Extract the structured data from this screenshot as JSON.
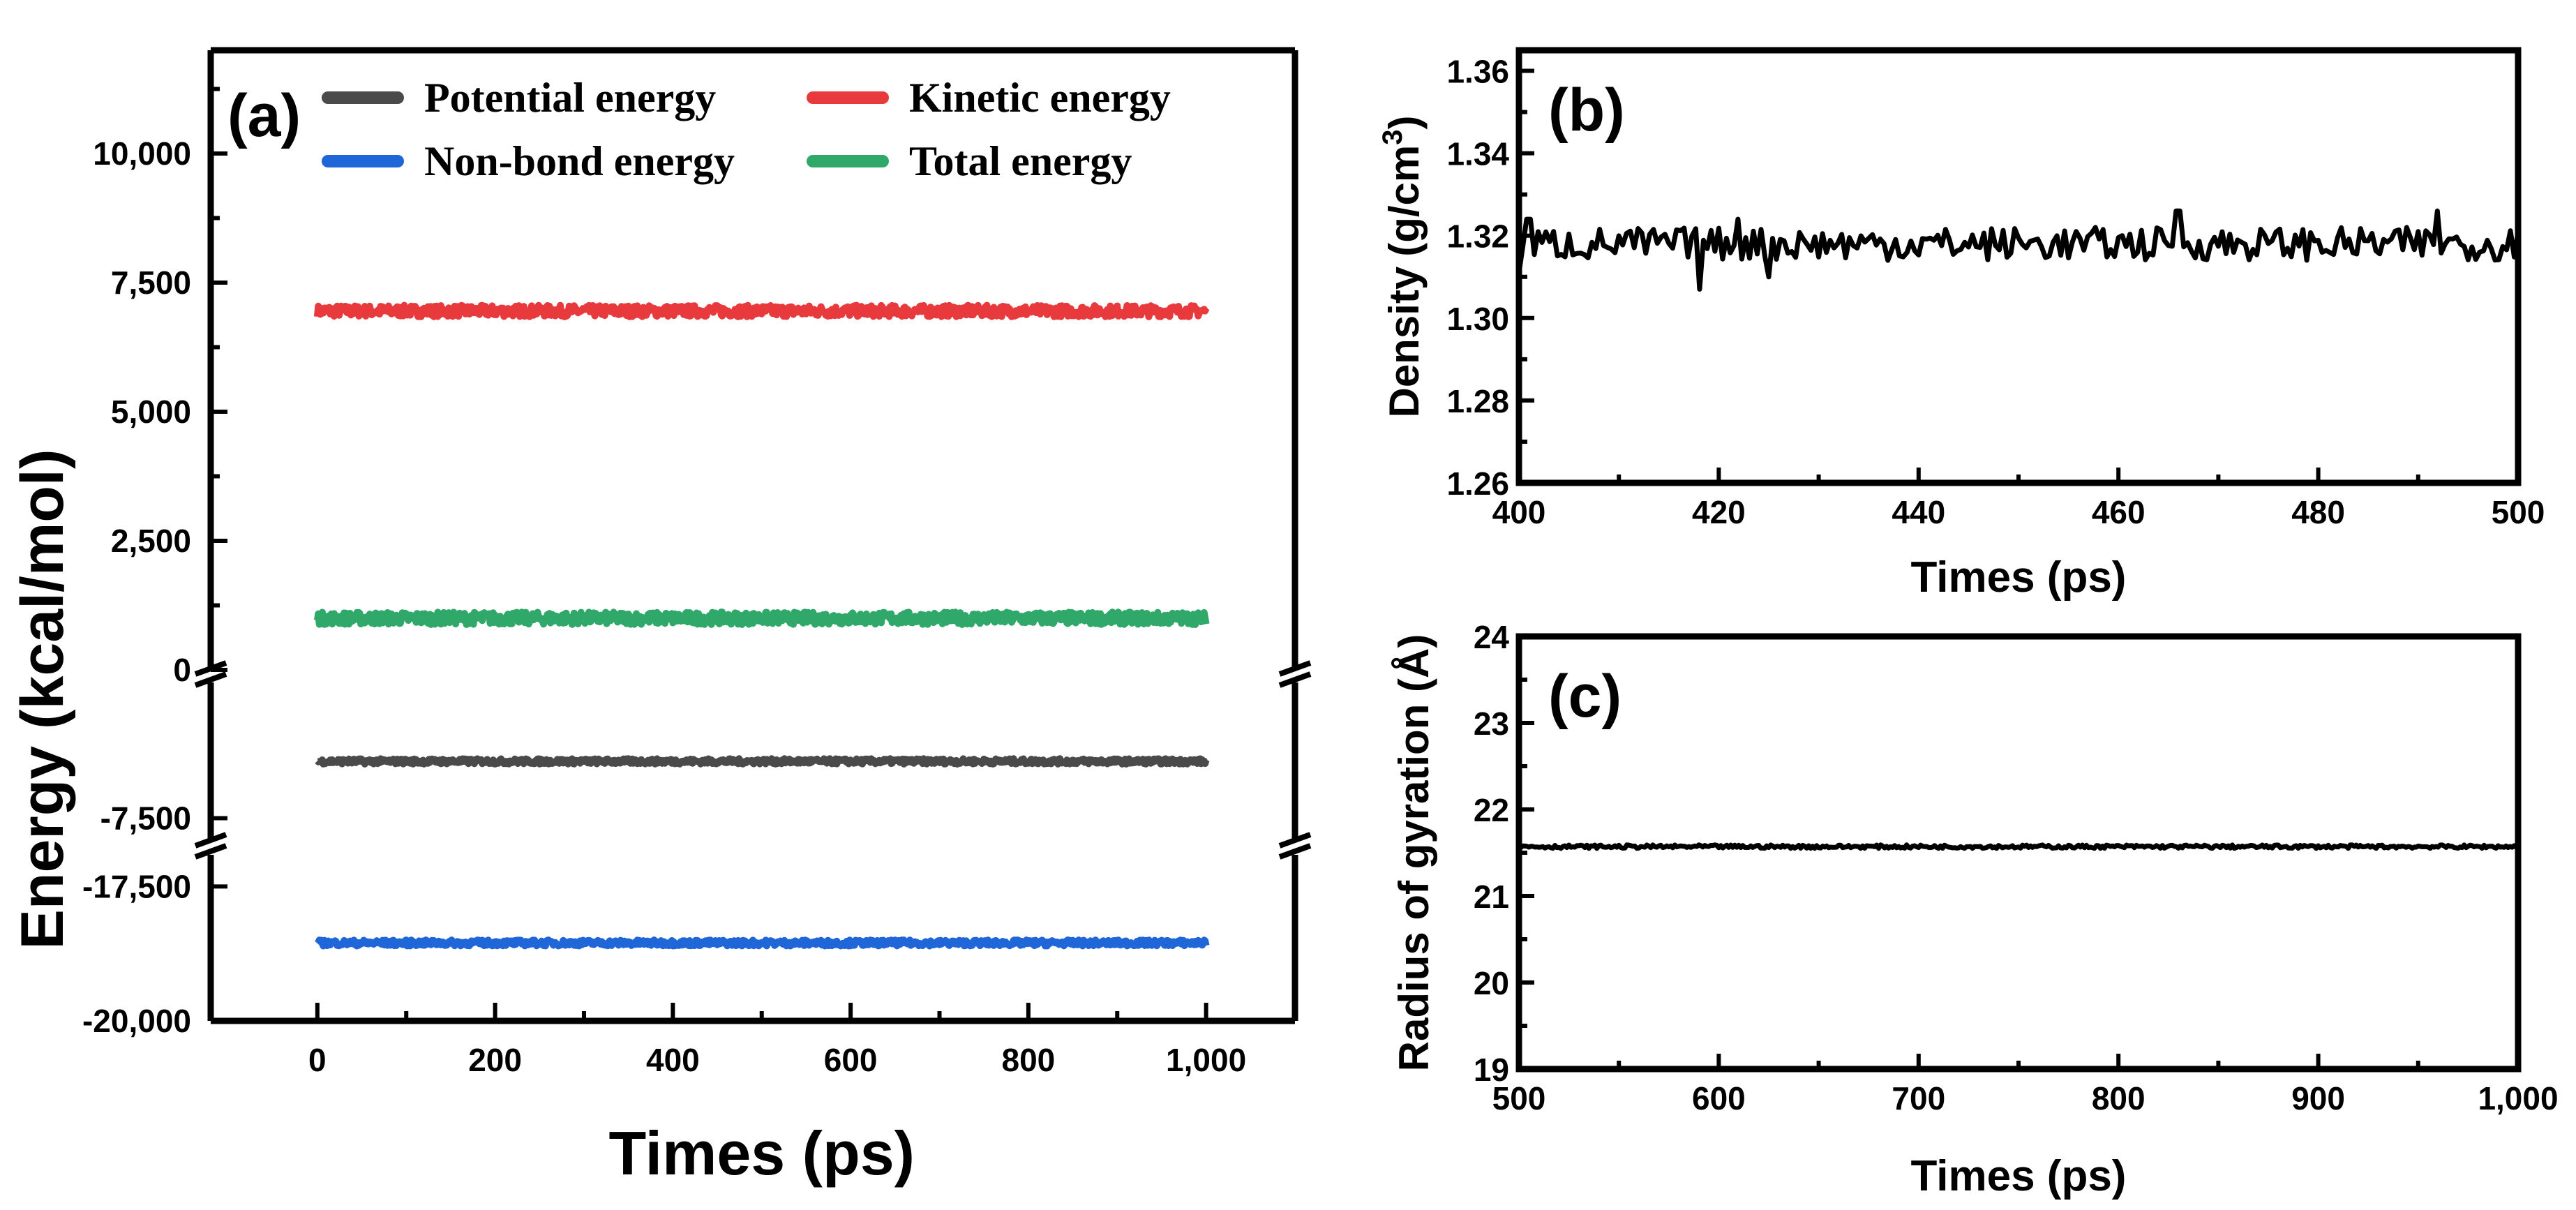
{
  "chart_data": [
    {
      "id": "a",
      "type": "line",
      "panel_label": "(a)",
      "xlabel": "Times (ps)",
      "ylabel": "Energy (kcal/mol)",
      "xlim": [
        -120,
        1100
      ],
      "xticks": [
        0,
        200,
        400,
        600,
        800,
        1000
      ],
      "xtick_labels": [
        "0",
        "200",
        "400",
        "600",
        "800",
        "1,000"
      ],
      "y_segments": [
        {
          "range": [
            0,
            12000
          ],
          "ticks": [
            0,
            2500,
            5000,
            7500,
            10000
          ],
          "tick_labels": [
            "0",
            "2,500",
            "5,000",
            "7,500",
            "10,000"
          ]
        },
        {
          "range": [
            -8000,
            -5000
          ],
          "ticks": [
            -7500
          ],
          "tick_labels": [
            "-7,500"
          ]
        },
        {
          "range": [
            -20000,
            -17300
          ],
          "ticks": [
            -17500,
            -20000
          ],
          "tick_labels": [
            "-17,500",
            "-20,000"
          ]
        }
      ],
      "legend": [
        {
          "name": "Potential energy",
          "color": "#4a4a4a"
        },
        {
          "name": "Kinetic energy",
          "color": "#e8393c"
        },
        {
          "name": "Non-bond energy",
          "color": "#1f66d8"
        },
        {
          "name": "Total energy",
          "color": "#2fa86a"
        }
      ],
      "series": [
        {
          "name": "Kinetic energy",
          "segment": 0,
          "mean": 6950,
          "noise": 110,
          "x": [
            0,
            1000
          ],
          "color": "#e8393c"
        },
        {
          "name": "Total energy",
          "segment": 0,
          "mean": 1000,
          "noise": 120,
          "x": [
            0,
            1000
          ],
          "color": "#2fa86a"
        },
        {
          "name": "Potential energy",
          "segment": 1,
          "mean": -6320,
          "noise": 55,
          "x": [
            0,
            1000
          ],
          "color": "#4a4a4a"
        },
        {
          "name": "Non-bond energy",
          "segment": 2,
          "mean": -18550,
          "noise": 55,
          "x": [
            0,
            1000
          ],
          "color": "#1f66d8"
        }
      ]
    },
    {
      "id": "b",
      "type": "line",
      "panel_label": "(b)",
      "xlabel": "Times (ps)",
      "ylabel_main": "Density",
      "ylabel_unit": "(g/cm",
      "ylabel_sup": "3",
      "ylabel_end": ")",
      "xlim": [
        400,
        500
      ],
      "ylim": [
        1.26,
        1.365
      ],
      "xticks": [
        400,
        420,
        440,
        460,
        480,
        500
      ],
      "xtick_labels": [
        "400",
        "420",
        "440",
        "460",
        "480",
        "500"
      ],
      "yticks": [
        1.26,
        1.28,
        1.3,
        1.32,
        1.34,
        1.36
      ],
      "ytick_labels": [
        "1.26",
        "1.28",
        "1.30",
        "1.32",
        "1.34",
        "1.36"
      ],
      "series": [
        {
          "name": "Density",
          "mean": 1.318,
          "noise": 0.004,
          "x": [
            400,
            500
          ],
          "color": "#000000",
          "features": [
            [
              400,
              1.311
            ],
            [
              401,
              1.324
            ],
            [
              418,
              1.307
            ],
            [
              422,
              1.324
            ],
            [
              425,
              1.31
            ],
            [
              466,
              1.326
            ],
            [
              492,
              1.326
            ],
            [
              500,
              1.321
            ]
          ]
        }
      ]
    },
    {
      "id": "c",
      "type": "line",
      "panel_label": "(c)",
      "xlabel": "Times (ps)",
      "ylabel": "Radius of gyration (Å)",
      "xlim": [
        500,
        1000
      ],
      "ylim": [
        19,
        24
      ],
      "xticks": [
        500,
        600,
        700,
        800,
        900,
        1000
      ],
      "xtick_labels": [
        "500",
        "600",
        "700",
        "800",
        "900",
        "1,000"
      ],
      "yticks": [
        19,
        20,
        21,
        22,
        23,
        24
      ],
      "ytick_labels": [
        "19",
        "20",
        "21",
        "22",
        "23",
        "24"
      ],
      "series": [
        {
          "name": "Radius of gyration",
          "mean": 21.57,
          "noise": 0.02,
          "x": [
            500,
            1000
          ],
          "color": "#000000"
        }
      ]
    }
  ]
}
